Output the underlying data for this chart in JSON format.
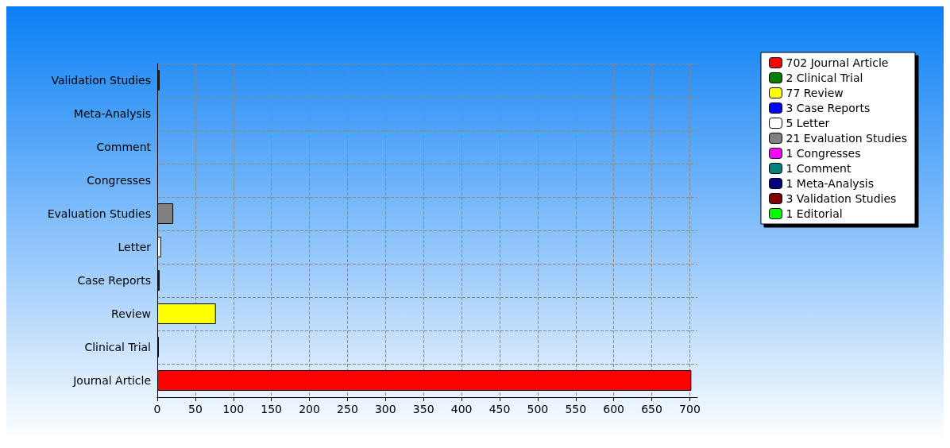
{
  "chart_data": {
    "type": "bar",
    "orientation": "horizontal",
    "stacked": true,
    "categories": [
      "Validation Studies",
      "Meta-Analysis",
      "Comment",
      "Congresses",
      "Evaluation Studies",
      "Letter",
      "Case Reports",
      "Review",
      "Clinical Trial",
      "Journal Article"
    ],
    "series": [
      {
        "name": "702 Journal Article",
        "color": "#ff0000",
        "values": [
          null,
          null,
          null,
          null,
          null,
          null,
          null,
          null,
          null,
          702
        ]
      },
      {
        "name": "2 Clinical Trial",
        "color": "#008000",
        "values": [
          null,
          null,
          null,
          null,
          null,
          null,
          null,
          null,
          2,
          null
        ]
      },
      {
        "name": "77 Review",
        "color": "#ffff00",
        "values": [
          null,
          null,
          null,
          null,
          null,
          null,
          null,
          77,
          null,
          null
        ]
      },
      {
        "name": "3 Case Reports",
        "color": "#0000ff",
        "values": [
          null,
          null,
          null,
          null,
          null,
          null,
          3,
          null,
          null,
          null
        ]
      },
      {
        "name": "5 Letter",
        "color": "#ffffff",
        "values": [
          null,
          null,
          null,
          null,
          null,
          5,
          null,
          null,
          null,
          null
        ]
      },
      {
        "name": "21 Evaluation Studies",
        "color": "#808080",
        "values": [
          null,
          null,
          null,
          null,
          21,
          null,
          null,
          null,
          null,
          null
        ]
      },
      {
        "name": "1 Congresses",
        "color": "#ff00ff",
        "values": [
          null,
          null,
          null,
          1,
          null,
          null,
          null,
          null,
          null,
          null
        ]
      },
      {
        "name": "1 Comment",
        "color": "#008080",
        "values": [
          null,
          null,
          1,
          null,
          null,
          null,
          null,
          null,
          null,
          null
        ]
      },
      {
        "name": "1 Meta-Analysis",
        "color": "#000080",
        "values": [
          null,
          1,
          null,
          null,
          null,
          null,
          null,
          null,
          null,
          null
        ]
      },
      {
        "name": "3 Validation Studies",
        "color": "#800000",
        "values": [
          3,
          null,
          null,
          null,
          null,
          null,
          null,
          null,
          null,
          null
        ]
      },
      {
        "name": "1 Editorial",
        "color": "#00ff00",
        "values": [
          null,
          null,
          null,
          null,
          null,
          null,
          null,
          null,
          null,
          null
        ]
      }
    ],
    "xlim": [
      0,
      710
    ],
    "xticks": [
      0,
      50,
      100,
      150,
      200,
      250,
      300,
      350,
      400,
      450,
      500,
      550,
      600,
      650,
      700
    ],
    "grid": true,
    "legend": "top right"
  }
}
